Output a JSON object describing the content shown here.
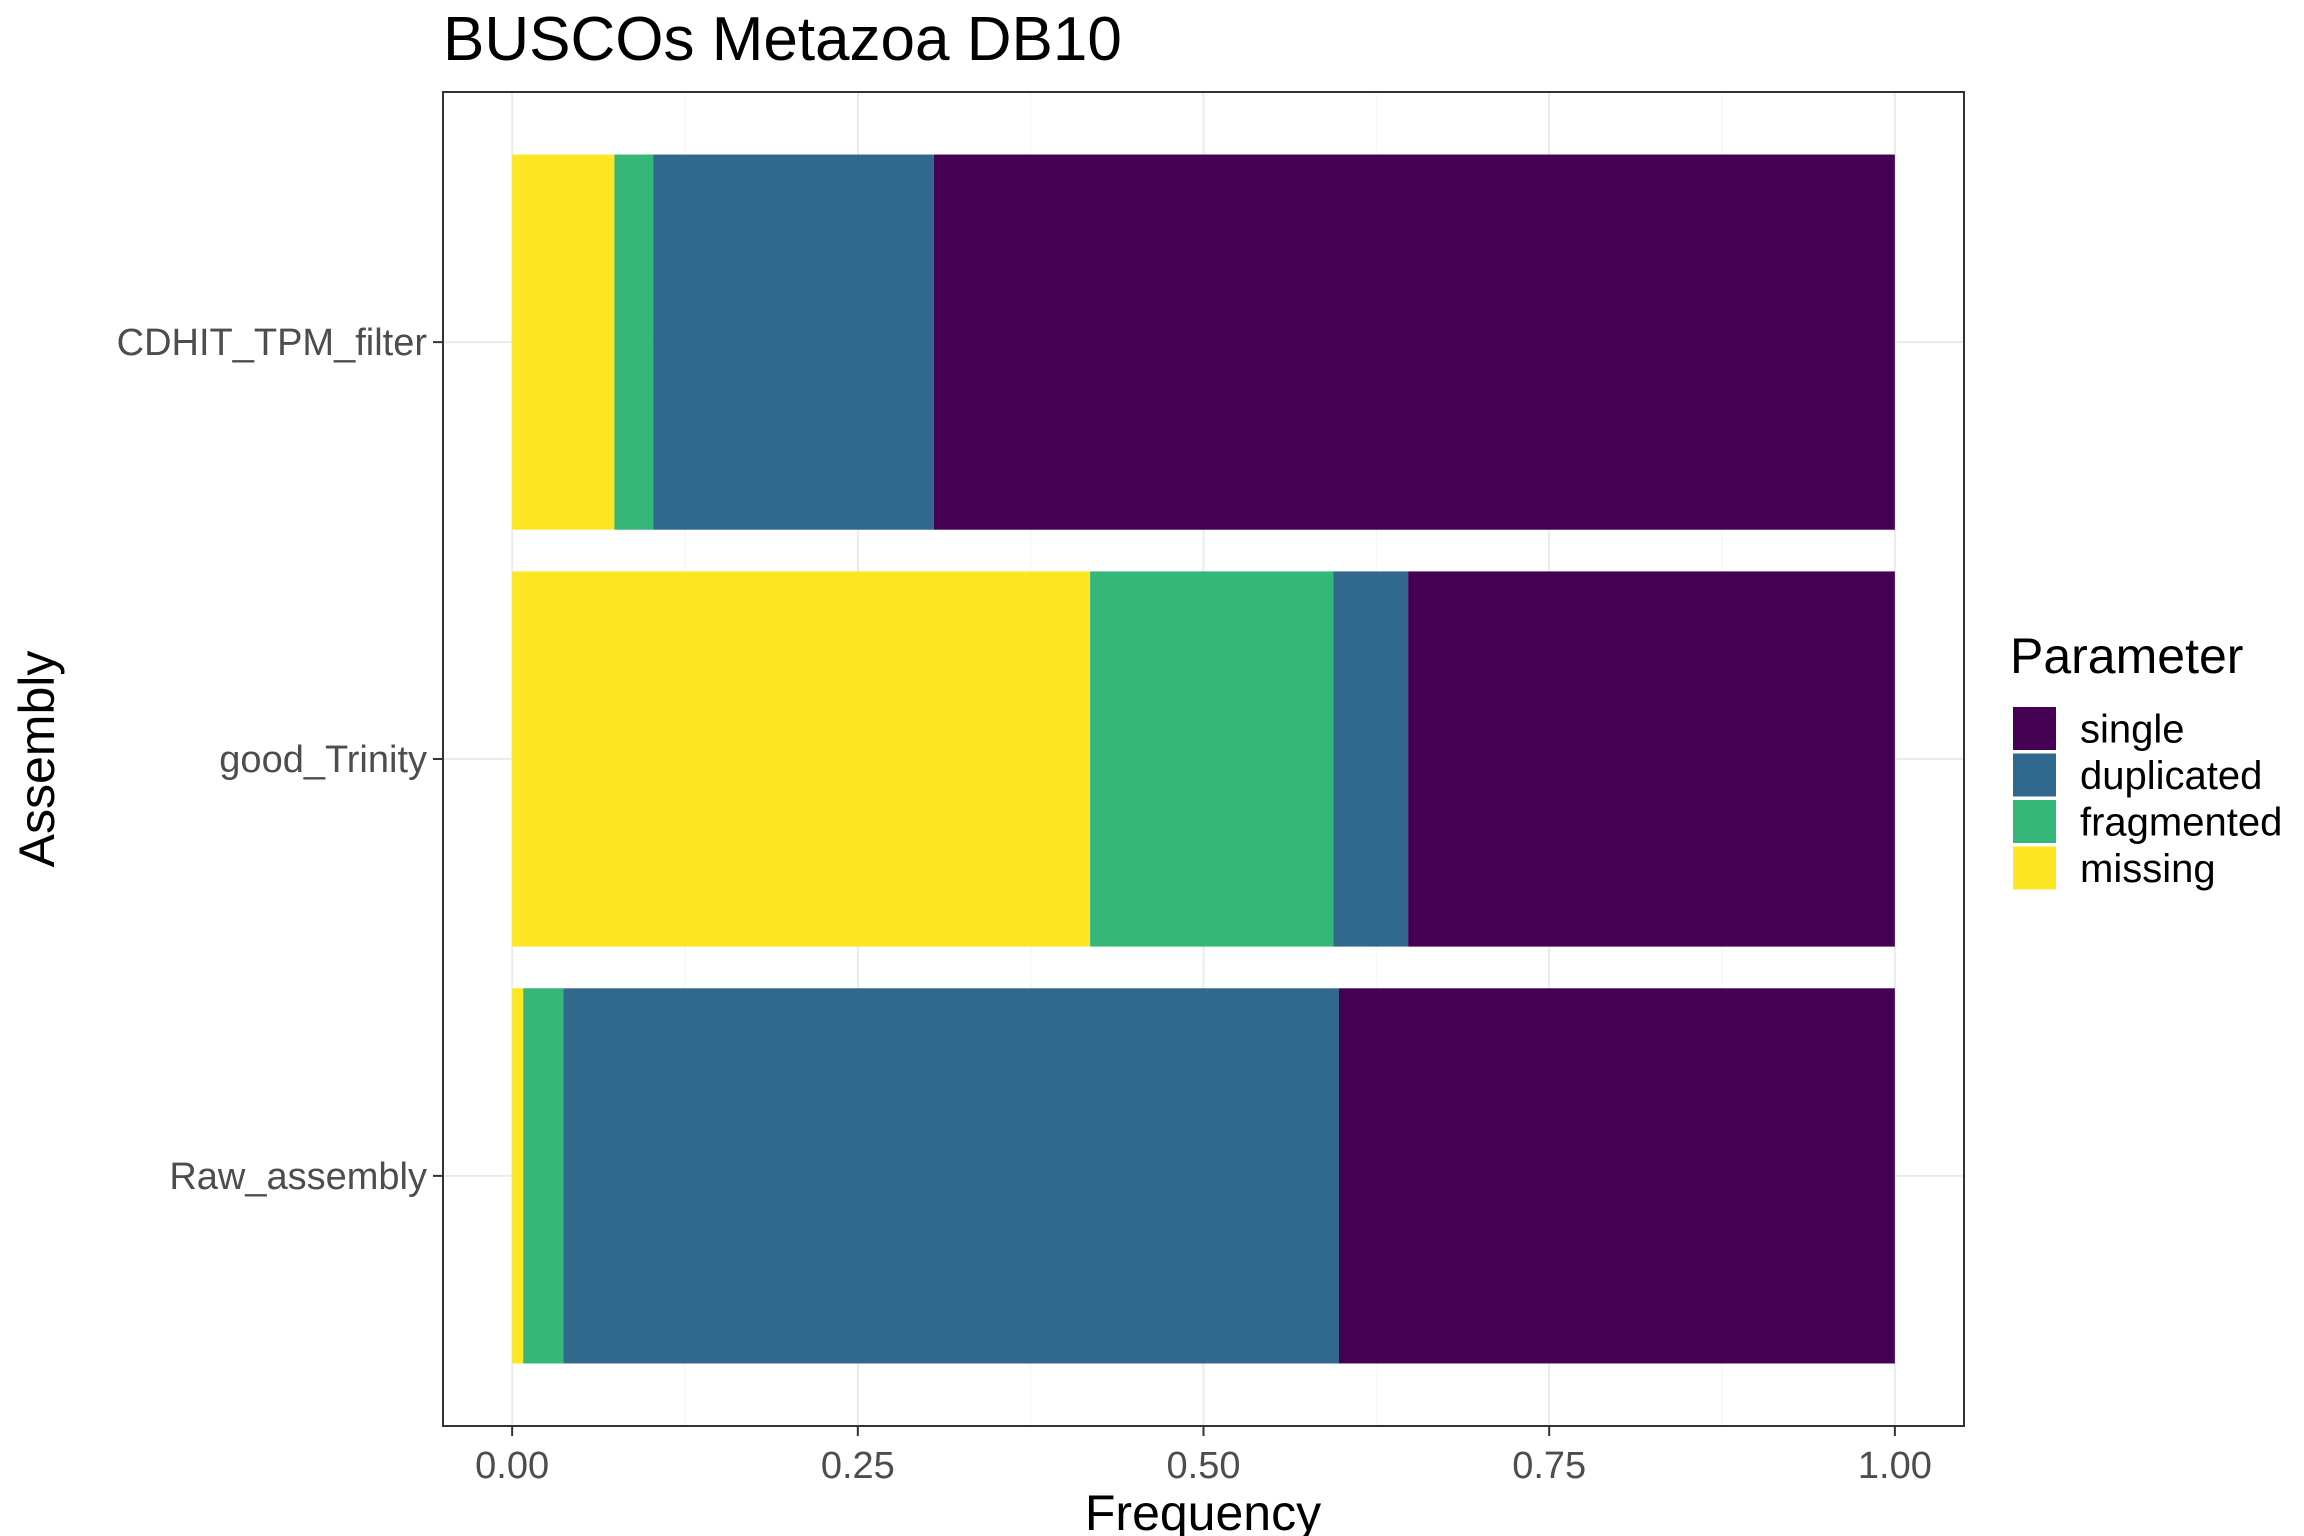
{
  "chart_data": {
    "type": "bar",
    "orientation": "horizontal",
    "stacked": true,
    "title": "BUSCOs Metazoa DB10",
    "xlabel": "Frequency",
    "ylabel": "Assembly",
    "xlim": [
      0,
      1
    ],
    "xticks": [
      0,
      0.25,
      0.5,
      0.75,
      1
    ],
    "xtick_labels": [
      "0.00",
      "0.25",
      "0.50",
      "0.75",
      "1.00"
    ],
    "categories": [
      "CDHIT_TPM_filter",
      "good_Trinity",
      "Raw_assembly"
    ],
    "stack_order": [
      "missing",
      "fragmented",
      "duplicated",
      "single"
    ],
    "series": [
      {
        "name": "single",
        "color": "#440154",
        "values": [
          0.695,
          0.352,
          0.402
        ]
      },
      {
        "name": "duplicated",
        "color": "#31688e",
        "values": [
          0.203,
          0.054,
          0.561
        ]
      },
      {
        "name": "fragmented",
        "color": "#35b779",
        "values": [
          0.028,
          0.176,
          0.029
        ]
      },
      {
        "name": "missing",
        "color": "#fde725",
        "values": [
          0.074,
          0.418,
          0.008
        ]
      }
    ],
    "legend": {
      "title": "Parameter",
      "position": "right",
      "items": [
        "single",
        "duplicated",
        "fragmented",
        "missing"
      ]
    },
    "grid": true
  }
}
